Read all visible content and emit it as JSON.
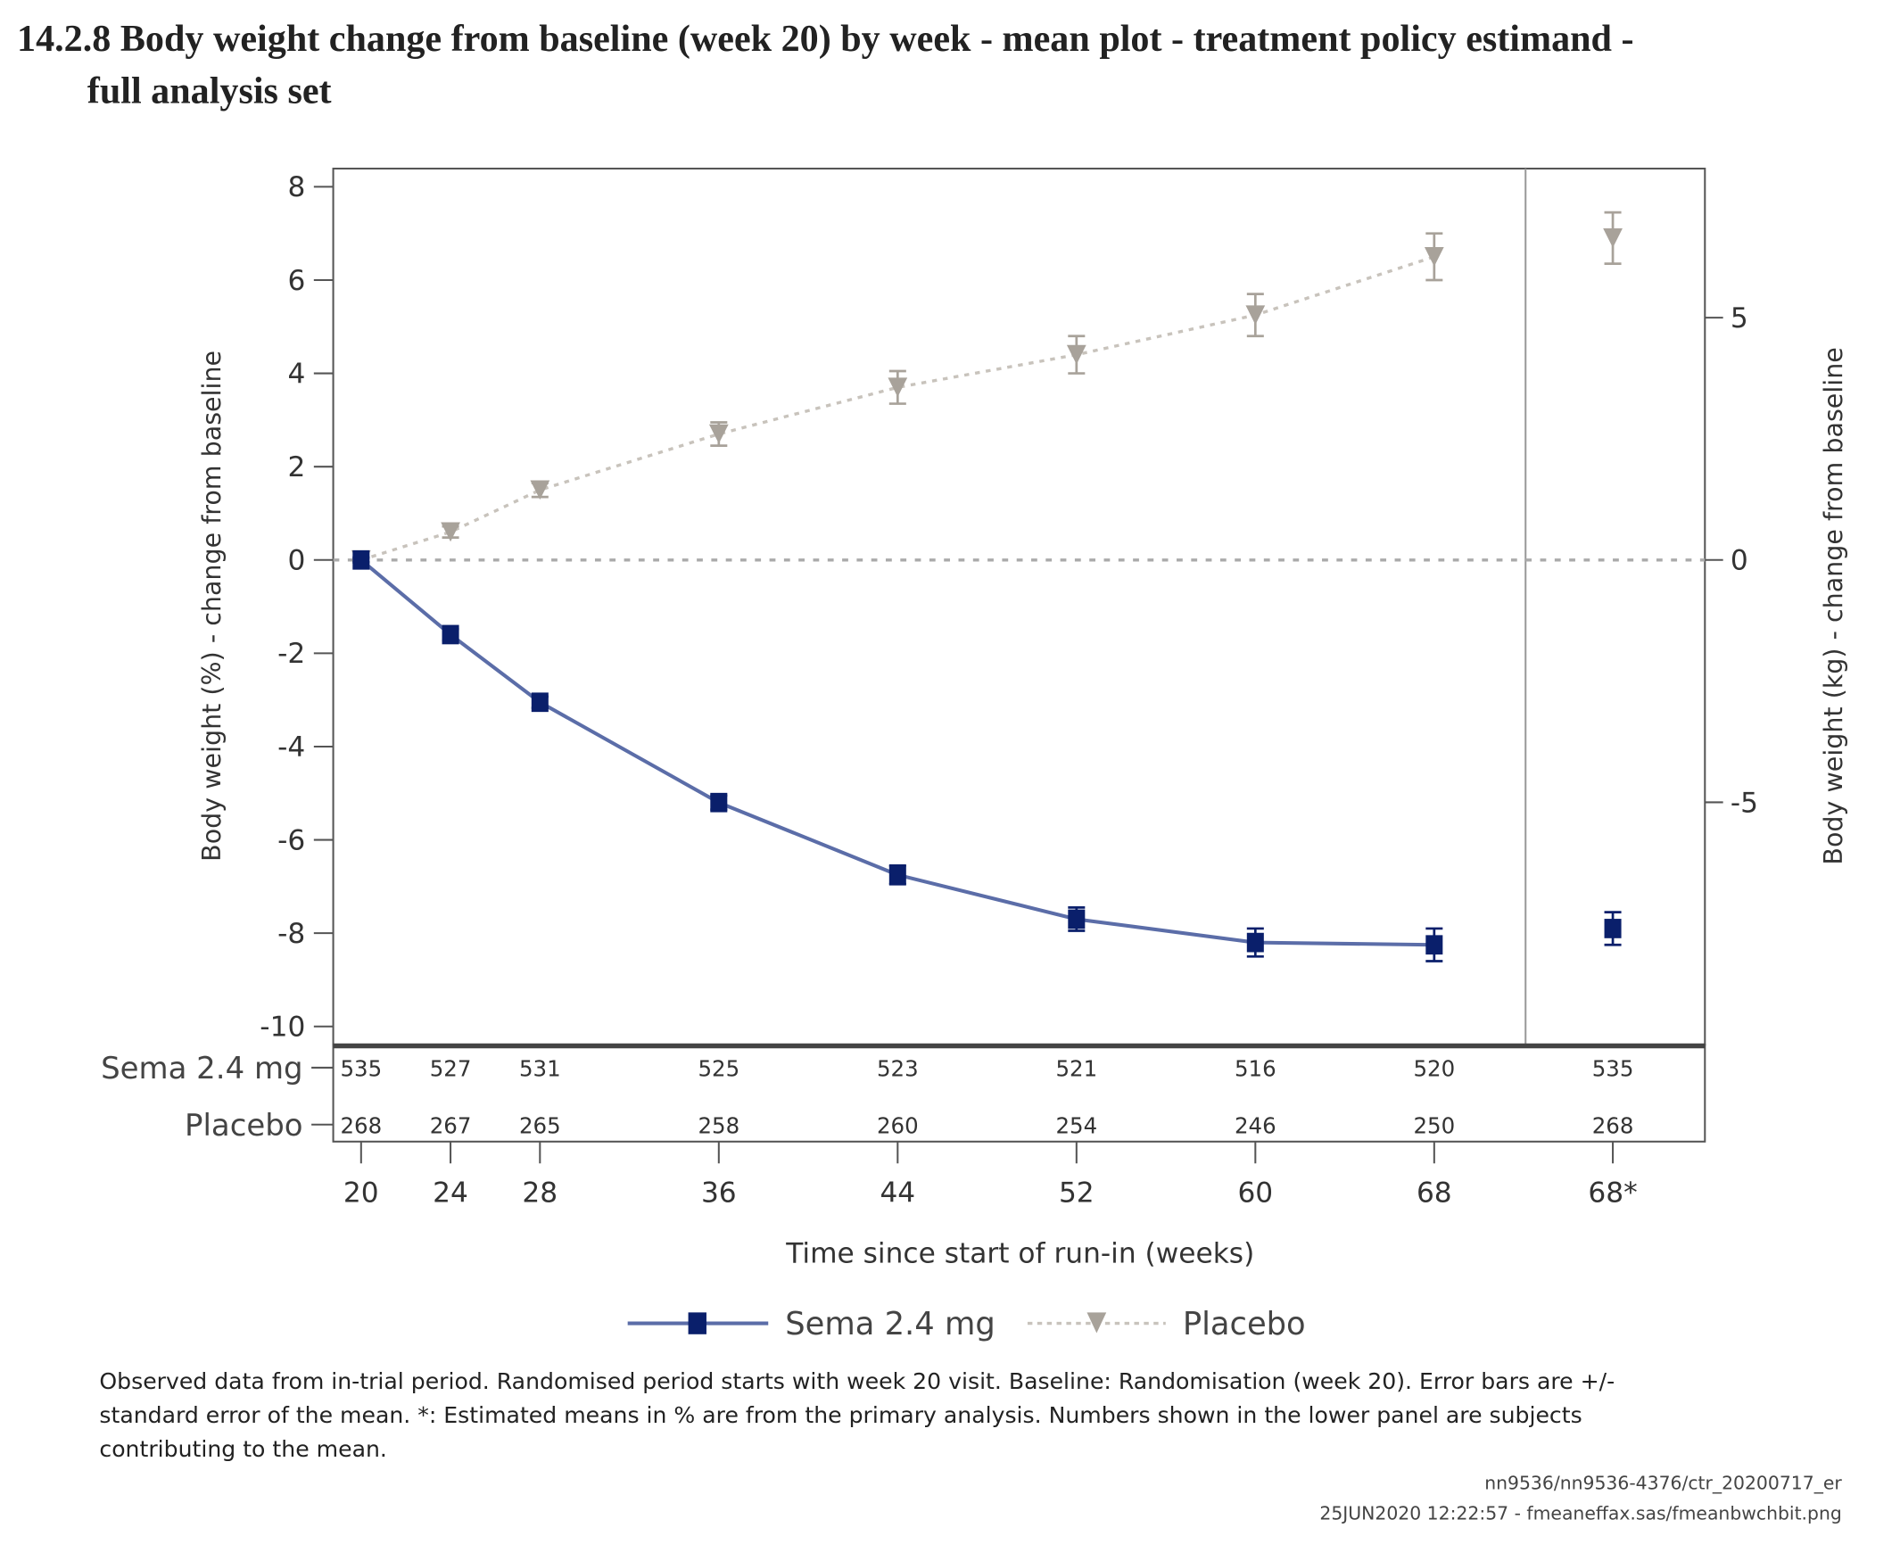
{
  "title_lines": [
    "14.2.8 Body weight change from baseline (week 20) by week - mean plot - treatment policy estimand -",
    "full analysis set"
  ],
  "chart_data": {
    "type": "line",
    "x_categories": [
      "20",
      "24",
      "28",
      "36",
      "44",
      "52",
      "60",
      "68",
      "68*"
    ],
    "x_weeks": [
      20,
      24,
      28,
      36,
      44,
      52,
      60,
      68,
      68
    ],
    "xlabel": "Time since start of run-in (weeks)",
    "ylabel_left": "Body weight (%) - change from baseline",
    "ylabel_right": "Body weight (kg) - change from baseline",
    "ylim_left": [
      -10,
      8
    ],
    "yticks_left": [
      "8",
      "6",
      "4",
      "2",
      "0",
      "-2",
      "-4",
      "-6",
      "-8",
      "-10"
    ],
    "yticks_left_values": [
      8,
      6,
      4,
      2,
      0,
      -2,
      -4,
      -6,
      -8,
      -10
    ],
    "yticks_right": [
      "5",
      "0",
      "-5"
    ],
    "yticks_right_values": [
      5,
      0,
      -5
    ],
    "reference_line": 0,
    "grid": false,
    "legend_position": "bottom",
    "series": [
      {
        "name": "Sema 2.4 mg",
        "color": "#0a1f6b",
        "line_color": "#5b6da8",
        "line_style": "solid",
        "marker": "square",
        "values": [
          0,
          -1.6,
          -3.05,
          -5.2,
          -6.75,
          -7.7,
          -8.2,
          -8.25,
          -7.9
        ],
        "se": [
          0.05,
          0.12,
          0.12,
          0.15,
          0.2,
          0.25,
          0.3,
          0.35,
          0.35
        ],
        "counts": [
          "535",
          "527",
          "531",
          "525",
          "523",
          "521",
          "516",
          "520",
          "535"
        ]
      },
      {
        "name": "Placebo",
        "color": "#a8a29a",
        "line_color": "#c8c3bc",
        "line_style": "dashed",
        "marker": "triangle-down",
        "values": [
          0,
          0.6,
          1.5,
          2.7,
          3.7,
          4.4,
          5.25,
          6.5,
          6.9
        ],
        "se": [
          0.05,
          0.12,
          0.15,
          0.25,
          0.35,
          0.4,
          0.45,
          0.5,
          0.55
        ],
        "counts": [
          "268",
          "267",
          "265",
          "258",
          "260",
          "254",
          "246",
          "250",
          "268"
        ]
      }
    ]
  },
  "count_rows": [
    "Sema 2.4 mg",
    "Placebo"
  ],
  "legend": [
    "Sema 2.4 mg",
    "Placebo"
  ],
  "footnote_lines": [
    "Observed data from in-trial period. Randomised period starts with week 20 visit. Baseline: Randomisation (week 20). Error bars are +/-",
    "standard error of the mean. *: Estimated means in % are from the primary analysis. Numbers shown in the lower panel are subjects",
    "contributing to the mean."
  ],
  "meta_lines": [
    "nn9536/nn9536-4376/ctr_20200717_er",
    "25JUN2020 12:22:57 - fmeaneffax.sas/fmeanbwchbit.png"
  ]
}
